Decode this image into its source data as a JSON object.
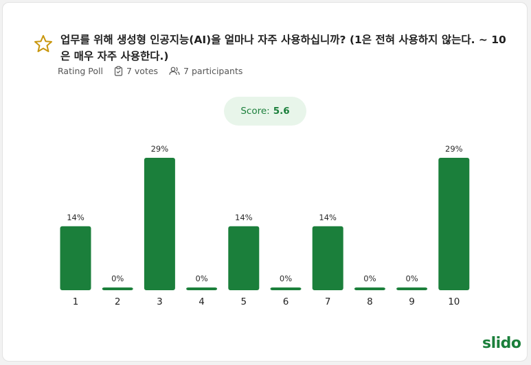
{
  "poll": {
    "question": "업무를 위해 생성형 인공지능(AI)을 얼마나 자주 사용하십니까? (1은 전혀 사용하지 않는다. ~ 10은 매우 자주 사용한다.)",
    "type_label": "Rating Poll",
    "votes_label": "7 votes",
    "participants_label": "7 participants",
    "score_label": "Score:",
    "score_value": "5.6",
    "icon": "star-icon",
    "accent_color": "#1b7f3b"
  },
  "brand": {
    "logo_text": "slido"
  },
  "chart_data": {
    "type": "bar",
    "categories": [
      "1",
      "2",
      "3",
      "4",
      "5",
      "6",
      "7",
      "8",
      "9",
      "10"
    ],
    "values": [
      14,
      0,
      29,
      0,
      14,
      0,
      14,
      0,
      0,
      29
    ],
    "value_labels": [
      "14%",
      "0%",
      "29%",
      "0%",
      "14%",
      "0%",
      "14%",
      "0%",
      "0%",
      "29%"
    ],
    "ylim": [
      0,
      29
    ],
    "bar_color": "#1b7f3b",
    "grid": false
  }
}
